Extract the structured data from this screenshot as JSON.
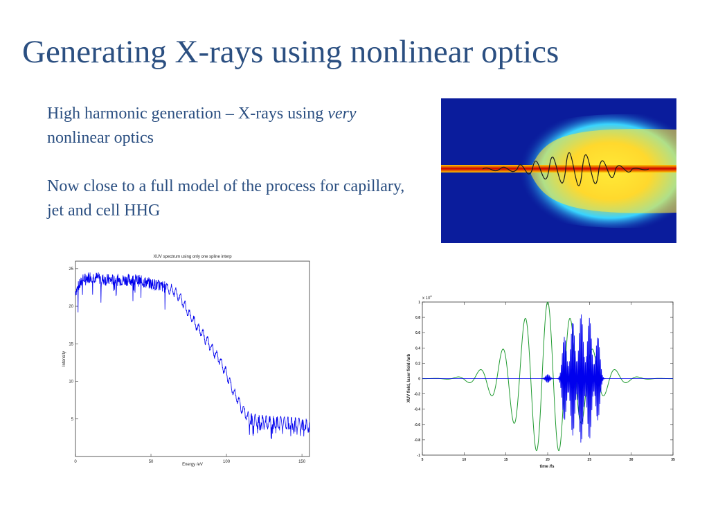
{
  "slide": {
    "title": "Generating X-rays using nonlinear optics",
    "bullet1": {
      "before": "High harmonic generation – X-rays using ",
      "emphasis": "very",
      "after": " nonlinear optics"
    },
    "bullet2": "Now close to a full model of the process for capillary, jet and cell HHG"
  },
  "colors": {
    "title": "#2b4f81",
    "sim_background": "#0a1c9c",
    "spectrum_line": "#0000ee",
    "laser_field": "#1f9a2f",
    "xuv_field": "#0000ee"
  },
  "chart_data": [
    {
      "type": "line",
      "title": "XUV spectrum using only one spline interp",
      "xlabel": "Energy /eV",
      "ylabel": "Intensity",
      "xlim": [
        0,
        155
      ],
      "ylim": [
        0,
        26
      ],
      "xticks": [
        "0",
        "50",
        "100",
        "150"
      ],
      "yticks": [
        "5",
        "10",
        "15",
        "20",
        "25"
      ],
      "grid": false,
      "series": [
        {
          "x": [
            0,
            5,
            10,
            20,
            30,
            40,
            50,
            60,
            65,
            70,
            75,
            80,
            85,
            90,
            95,
            100,
            105,
            110,
            115,
            120,
            130,
            140,
            150,
            155
          ],
          "values": [
            22,
            23.5,
            24,
            23.5,
            23.5,
            23.5,
            23,
            22.5,
            22,
            21,
            19,
            17.5,
            16,
            14.5,
            13,
            11,
            8.5,
            6.5,
            5,
            4.8,
            4.6,
            4.5,
            4.3,
            4.2
          ]
        }
      ]
    },
    {
      "type": "line",
      "xlabel": "time /fs",
      "ylabel": "XUV field, laser field /arb",
      "multiplier": "x 10",
      "multiplier_exp": "8",
      "xlim": [
        5,
        35
      ],
      "ylim": [
        -1,
        1
      ],
      "xticks": [
        "5",
        "10",
        "15",
        "20",
        "25",
        "30",
        "35"
      ],
      "yticks": [
        "-1",
        "-0.8",
        "-0.6",
        "-0.4",
        "-0.2",
        "0",
        "0.2",
        "0.4",
        "0.6",
        "0.8",
        "1"
      ],
      "grid": false,
      "laser": {
        "center_fs": 20,
        "period_fs": 2.7,
        "envelope_sigma_fs": 5.5,
        "amplitude": 1.0
      },
      "xuv": {
        "burst_centers_fs": [
          20,
          22,
          23,
          24,
          25,
          26
        ],
        "burst_amplitudes": [
          0.05,
          0.55,
          0.75,
          0.85,
          0.8,
          0.55
        ],
        "period_fs": 0.12
      }
    }
  ]
}
